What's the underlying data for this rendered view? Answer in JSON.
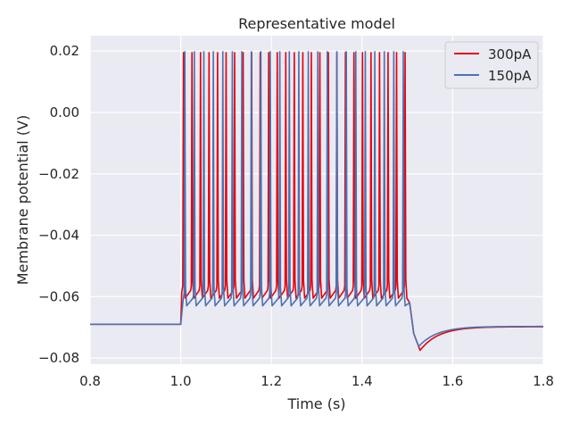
{
  "chart_data": {
    "type": "line",
    "title": "Representative model",
    "xlabel": "Time (s)",
    "ylabel": "Membrane potential (V)",
    "xlim": [
      0.8,
      1.8
    ],
    "ylim": [
      -0.082,
      0.025
    ],
    "x_ticks": [
      0.8,
      1.0,
      1.2,
      1.4,
      1.6,
      1.8
    ],
    "x_tick_labels": [
      "0.8",
      "1.0",
      "1.2",
      "1.4",
      "1.6",
      "1.8"
    ],
    "y_ticks": [
      0.02,
      0.0,
      -0.02,
      -0.04,
      -0.06,
      -0.08
    ],
    "y_tick_labels": [
      "0.02",
      "0.00",
      "−0.02",
      "−0.04",
      "−0.06",
      "−0.08"
    ],
    "grid": true,
    "legend_position": "top-right",
    "series": [
      {
        "name": "300pA",
        "color": "#e8000b",
        "rest_potential": -0.069,
        "stim_start": 1.0,
        "stim_end": 1.5,
        "spike_peak": 0.0195,
        "trough": -0.0605,
        "spike_count": 27,
        "first_spike_time": 1.006,
        "last_spike_time": 1.495,
        "undershoot_min": -0.0775,
        "undershoot_time": 1.528,
        "final_potential": -0.0698
      },
      {
        "name": "150pA",
        "color": "#4c72b0",
        "rest_potential": -0.069,
        "stim_start": 1.0,
        "stim_end": 1.5,
        "spike_peak": 0.0198,
        "trough": -0.063,
        "spike_count": 24,
        "first_spike_time": 1.009,
        "last_spike_time": 1.491,
        "undershoot_min": -0.0762,
        "undershoot_time": 1.525,
        "final_potential": -0.0697
      }
    ]
  }
}
